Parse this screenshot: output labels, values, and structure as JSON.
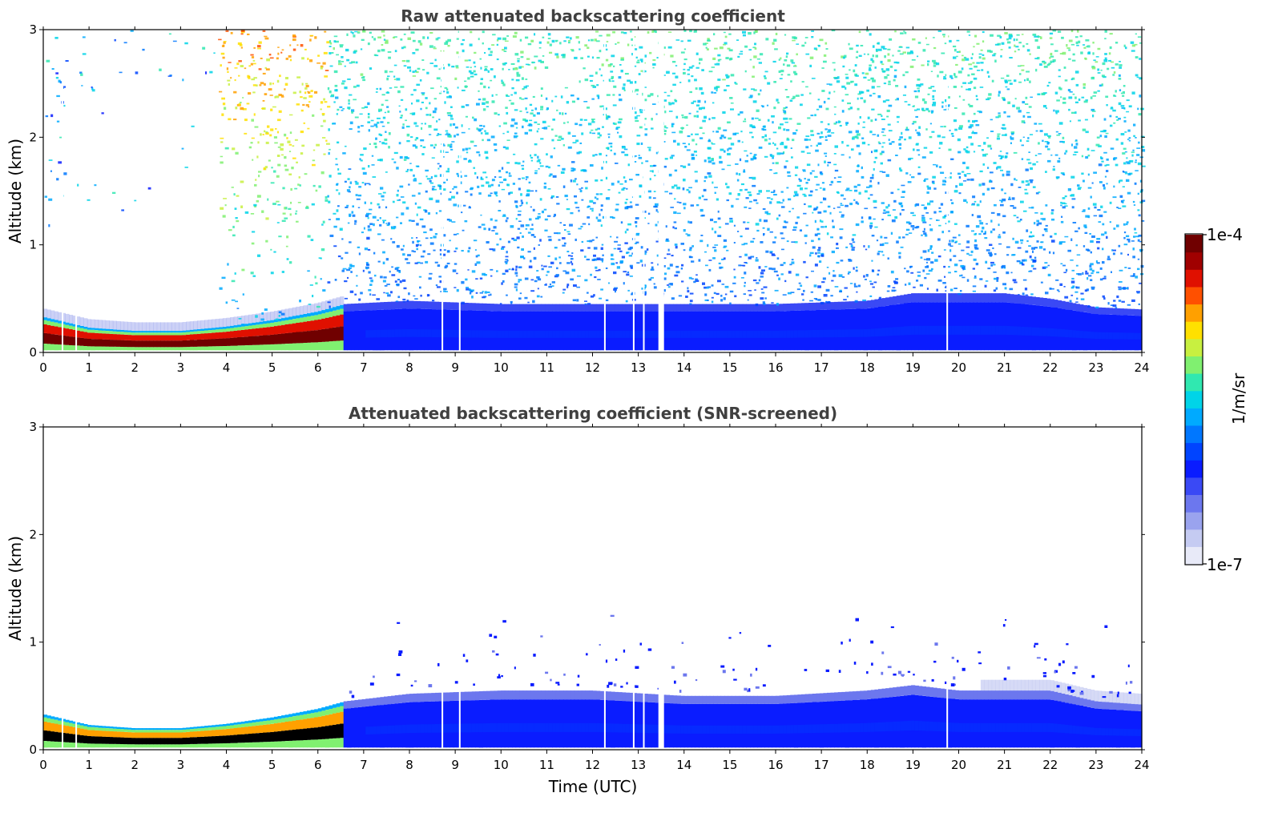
{
  "colors": {
    "frame": "#000000",
    "title_text": "#404040",
    "colormap": [
      "#e8eaf8",
      "#c5cbf2",
      "#9aa3ee",
      "#6c77ee",
      "#3a49f5",
      "#0a1cff",
      "#0044ff",
      "#0077ff",
      "#00aaff",
      "#00d4e8",
      "#30e8b0",
      "#80f070",
      "#c8f040",
      "#ffe000",
      "#ffa000",
      "#ff5000",
      "#e01000",
      "#a00000",
      "#700000"
    ]
  },
  "chart_data": [
    {
      "type": "heatmap",
      "title": "Raw attenuated backscattering coefficient",
      "xlabel": "",
      "ylabel": "Altitude (km)",
      "xlim": [
        0,
        24
      ],
      "ylim": [
        0,
        3
      ],
      "x_ticks": [
        "0",
        "1",
        "2",
        "3",
        "4",
        "5",
        "6",
        "7",
        "8",
        "9",
        "10",
        "11",
        "12",
        "13",
        "14",
        "15",
        "16",
        "17",
        "18",
        "19",
        "20",
        "21",
        "22",
        "23",
        "24"
      ],
      "y_ticks": [
        "0",
        "1",
        "2",
        "3"
      ],
      "color_scale": "log",
      "layer_top_km": [
        [
          0,
          0.33
        ],
        [
          1,
          0.23
        ],
        [
          2,
          0.2
        ],
        [
          3,
          0.2
        ],
        [
          4,
          0.24
        ],
        [
          5,
          0.3
        ],
        [
          6,
          0.38
        ],
        [
          6.6,
          0.45
        ],
        [
          8,
          0.48
        ],
        [
          10,
          0.45
        ],
        [
          12,
          0.45
        ],
        [
          14,
          0.45
        ],
        [
          16,
          0.45
        ],
        [
          18,
          0.48
        ],
        [
          19,
          0.55
        ],
        [
          20,
          0.55
        ],
        [
          21,
          0.55
        ],
        [
          22,
          0.5
        ],
        [
          23,
          0.42
        ],
        [
          24,
          0.4
        ]
      ],
      "dense_layer_end_hour": 6.6,
      "noise_gap_hours": [
        0.42,
        0.72,
        8.72,
        9.1,
        12.27,
        12.9,
        13.12,
        13.5,
        19.75
      ]
    },
    {
      "type": "heatmap",
      "title": "Attenuated backscattering coefficient (SNR-screened)",
      "xlabel": "Time (UTC)",
      "ylabel": "Altitude (km)",
      "xlim": [
        0,
        24
      ],
      "ylim": [
        0,
        3
      ],
      "x_ticks": [
        "0",
        "1",
        "2",
        "3",
        "4",
        "5",
        "6",
        "7",
        "8",
        "9",
        "10",
        "11",
        "12",
        "13",
        "14",
        "15",
        "16",
        "17",
        "18",
        "19",
        "20",
        "21",
        "22",
        "23",
        "24"
      ],
      "y_ticks": [
        "0",
        "1",
        "2",
        "3"
      ],
      "color_scale": "log",
      "layer_top_km": [
        [
          0,
          0.33
        ],
        [
          1,
          0.23
        ],
        [
          2,
          0.2
        ],
        [
          3,
          0.2
        ],
        [
          4,
          0.24
        ],
        [
          5,
          0.3
        ],
        [
          6,
          0.38
        ],
        [
          6.6,
          0.45
        ],
        [
          8,
          0.52
        ],
        [
          10,
          0.55
        ],
        [
          12,
          0.55
        ],
        [
          14,
          0.5
        ],
        [
          16,
          0.5
        ],
        [
          18,
          0.55
        ],
        [
          19,
          0.6
        ],
        [
          20,
          0.55
        ],
        [
          21,
          0.55
        ],
        [
          22,
          0.55
        ],
        [
          23,
          0.45
        ],
        [
          24,
          0.42
        ]
      ],
      "dense_layer_end_hour": 6.6,
      "noise_gap_hours": [
        0.42,
        0.72,
        8.72,
        9.1,
        12.27,
        12.9,
        13.12,
        13.5,
        19.75
      ]
    }
  ],
  "colorbar": {
    "max_label": "1e-4",
    "min_label": "1e-7",
    "unit_label": "1/m/sr"
  }
}
